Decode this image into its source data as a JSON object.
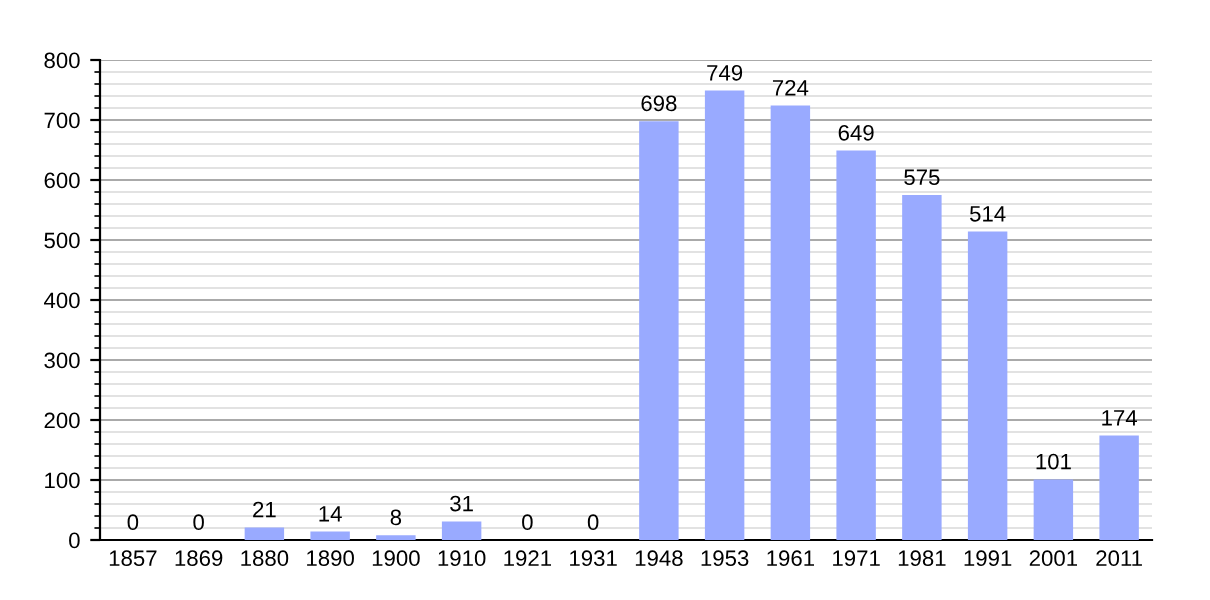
{
  "chart_data": {
    "type": "bar",
    "categories": [
      "1857",
      "1869",
      "1880",
      "1890",
      "1900",
      "1910",
      "1921",
      "1931",
      "1948",
      "1953",
      "1961",
      "1971",
      "1981",
      "1991",
      "2001",
      "2011"
    ],
    "values": [
      0,
      0,
      21,
      14,
      8,
      31,
      0,
      0,
      698,
      749,
      724,
      649,
      575,
      514,
      101,
      174
    ],
    "color": "#99aaff",
    "ylim": [
      0,
      800
    ],
    "yticks": [
      0,
      100,
      200,
      300,
      400,
      500,
      600,
      700,
      800
    ],
    "grid": "y",
    "data_labels": true
  }
}
